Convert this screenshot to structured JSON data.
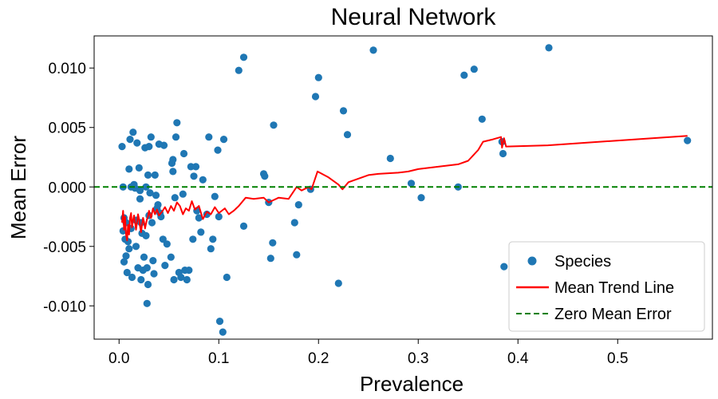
{
  "chart_data": {
    "type": "scatter",
    "title": "Neural Network",
    "xlabel": "Prevalence",
    "ylabel": "Mean Error",
    "xlim": [
      -0.025,
      0.595
    ],
    "ylim": [
      -0.0128,
      0.0127
    ],
    "xticks": [
      0.0,
      0.1,
      0.2,
      0.3,
      0.4,
      0.5
    ],
    "xtick_labels": [
      "0.0",
      "0.1",
      "0.2",
      "0.3",
      "0.4",
      "0.5"
    ],
    "yticks": [
      0.01,
      0.005,
      0.0,
      -0.005,
      -0.01
    ],
    "ytick_labels": [
      "0.010",
      "0.005",
      "0.000",
      "-0.005",
      "-0.010"
    ],
    "grid": false,
    "legend_position": "lower-right",
    "legend": [
      "Species",
      "Mean Trend Line",
      "Zero Mean Error"
    ],
    "colors": {
      "species": "#1f77b4",
      "trend": "#ff0000",
      "zero": "#008000"
    },
    "series": [
      {
        "name": "Species",
        "kind": "scatter",
        "points": [
          [
            0.003,
            0.0034
          ],
          [
            0.004,
            0.0
          ],
          [
            0.005,
            -0.0026
          ],
          [
            0.004,
            -0.0037
          ],
          [
            0.006,
            -0.0044
          ],
          [
            0.005,
            -0.0063
          ],
          [
            0.007,
            -0.003
          ],
          [
            0.007,
            -0.0058
          ],
          [
            0.008,
            -0.0072
          ],
          [
            0.009,
            -0.0046
          ],
          [
            0.01,
            0.0015
          ],
          [
            0.01,
            -0.0052
          ],
          [
            0.011,
            0.004
          ],
          [
            0.012,
            0.0
          ],
          [
            0.012,
            -0.0035
          ],
          [
            0.013,
            -0.0076
          ],
          [
            0.014,
            0.0046
          ],
          [
            0.015,
            0.0002
          ],
          [
            0.016,
            -0.0001
          ],
          [
            0.017,
            -0.0028
          ],
          [
            0.017,
            -0.005
          ],
          [
            0.018,
            0.0037
          ],
          [
            0.019,
            -0.0068
          ],
          [
            0.02,
            0.0016
          ],
          [
            0.021,
            -0.0003
          ],
          [
            0.021,
            -0.001
          ],
          [
            0.022,
            -0.003
          ],
          [
            0.022,
            -0.0078
          ],
          [
            0.023,
            -0.0039
          ],
          [
            0.024,
            -0.007
          ],
          [
            0.025,
            -0.0059
          ],
          [
            0.026,
            0.0033
          ],
          [
            0.027,
            0.0
          ],
          [
            0.027,
            -0.0041
          ],
          [
            0.028,
            -0.0068
          ],
          [
            0.028,
            -0.0098
          ],
          [
            0.029,
            0.001
          ],
          [
            0.029,
            -0.0082
          ],
          [
            0.03,
            0.0034
          ],
          [
            0.03,
            -0.0024
          ],
          [
            0.031,
            -0.0005
          ],
          [
            0.032,
            0.0042
          ],
          [
            0.033,
            -0.003
          ],
          [
            0.034,
            -0.0062
          ],
          [
            0.035,
            -0.0073
          ],
          [
            0.036,
            0.001
          ],
          [
            0.037,
            -0.0007
          ],
          [
            0.038,
            -0.0018
          ],
          [
            0.039,
            -0.0015
          ],
          [
            0.04,
            0.0036
          ],
          [
            0.041,
            -0.0022
          ],
          [
            0.042,
            -0.0025
          ],
          [
            0.044,
            -0.0044
          ],
          [
            0.045,
            0.0035
          ],
          [
            0.046,
            -0.0066
          ],
          [
            0.048,
            -0.0048
          ],
          [
            0.052,
            -0.0059
          ],
          [
            0.053,
            0.002
          ],
          [
            0.054,
            0.0023
          ],
          [
            0.054,
            0.0013
          ],
          [
            0.055,
            -0.0078
          ],
          [
            0.056,
            -0.0009
          ],
          [
            0.057,
            0.0042
          ],
          [
            0.058,
            0.0054
          ],
          [
            0.06,
            -0.0072
          ],
          [
            0.062,
            -0.0076
          ],
          [
            0.064,
            -0.0006
          ],
          [
            0.065,
            0.0028
          ],
          [
            0.066,
            -0.007
          ],
          [
            0.068,
            -0.0078
          ],
          [
            0.07,
            -0.007
          ],
          [
            0.072,
            0.0017
          ],
          [
            0.074,
            -0.0044
          ],
          [
            0.075,
            0.0009
          ],
          [
            0.077,
            0.0017
          ],
          [
            0.078,
            -0.002
          ],
          [
            0.08,
            -0.0026
          ],
          [
            0.082,
            -0.0038
          ],
          [
            0.084,
            0.0006
          ],
          [
            0.088,
            -0.0023
          ],
          [
            0.09,
            0.0042
          ],
          [
            0.092,
            -0.0052
          ],
          [
            0.094,
            -0.0044
          ],
          [
            0.096,
            -0.0008
          ],
          [
            0.099,
            0.0031
          ],
          [
            0.1,
            -0.0025
          ],
          [
            0.101,
            -0.0113
          ],
          [
            0.104,
            -0.0122
          ],
          [
            0.105,
            0.004
          ],
          [
            0.108,
            -0.0076
          ],
          [
            0.12,
            0.0098
          ],
          [
            0.125,
            0.0109
          ],
          [
            0.125,
            -0.0033
          ],
          [
            0.145,
            0.0011
          ],
          [
            0.146,
            0.0009
          ],
          [
            0.15,
            -0.0013
          ],
          [
            0.152,
            -0.006
          ],
          [
            0.154,
            -0.0047
          ],
          [
            0.155,
            0.0052
          ],
          [
            0.176,
            -0.003
          ],
          [
            0.178,
            -0.0057
          ],
          [
            0.18,
            -0.0015
          ],
          [
            0.192,
            -0.0002
          ],
          [
            0.197,
            0.0076
          ],
          [
            0.2,
            0.0092
          ],
          [
            0.22,
            -0.0081
          ],
          [
            0.225,
            0.0064
          ],
          [
            0.229,
            0.0044
          ],
          [
            0.255,
            0.0115
          ],
          [
            0.272,
            0.0024
          ],
          [
            0.293,
            0.0003
          ],
          [
            0.303,
            -0.0009
          ],
          [
            0.34,
            0.0
          ],
          [
            0.346,
            0.0094
          ],
          [
            0.356,
            0.0099
          ],
          [
            0.364,
            0.0057
          ],
          [
            0.384,
            0.0038
          ],
          [
            0.385,
            0.0028
          ],
          [
            0.386,
            -0.0067
          ],
          [
            0.431,
            0.0117
          ],
          [
            0.57,
            0.0039
          ]
        ]
      },
      {
        "name": "Mean Trend Line",
        "kind": "line",
        "points": [
          [
            0.003,
            -0.003
          ],
          [
            0.004,
            -0.002
          ],
          [
            0.005,
            -0.0036
          ],
          [
            0.006,
            -0.0025
          ],
          [
            0.007,
            -0.004
          ],
          [
            0.008,
            -0.0045
          ],
          [
            0.009,
            -0.0032
          ],
          [
            0.01,
            -0.004
          ],
          [
            0.011,
            -0.0026
          ],
          [
            0.012,
            -0.0022
          ],
          [
            0.013,
            -0.0034
          ],
          [
            0.014,
            -0.0028
          ],
          [
            0.015,
            -0.0024
          ],
          [
            0.016,
            -0.003
          ],
          [
            0.017,
            -0.0036
          ],
          [
            0.018,
            -0.003
          ],
          [
            0.019,
            -0.0023
          ],
          [
            0.02,
            -0.0027
          ],
          [
            0.021,
            -0.0033
          ],
          [
            0.022,
            -0.0038
          ],
          [
            0.023,
            -0.0032
          ],
          [
            0.024,
            -0.0026
          ],
          [
            0.025,
            -0.0029
          ],
          [
            0.026,
            -0.0035
          ],
          [
            0.027,
            -0.0031
          ],
          [
            0.028,
            -0.0027
          ],
          [
            0.029,
            -0.0025
          ],
          [
            0.03,
            -0.002
          ],
          [
            0.032,
            -0.0026
          ],
          [
            0.034,
            -0.0018
          ],
          [
            0.036,
            -0.0023
          ],
          [
            0.038,
            -0.0019
          ],
          [
            0.04,
            -0.0024
          ],
          [
            0.043,
            -0.0021
          ],
          [
            0.046,
            -0.0017
          ],
          [
            0.049,
            -0.0022
          ],
          [
            0.052,
            -0.0016
          ],
          [
            0.055,
            -0.002
          ],
          [
            0.058,
            -0.0013
          ],
          [
            0.061,
            -0.0016
          ],
          [
            0.064,
            -0.0023
          ],
          [
            0.067,
            -0.0018
          ],
          [
            0.07,
            -0.002
          ],
          [
            0.073,
            -0.0012
          ],
          [
            0.076,
            -0.0019
          ],
          [
            0.08,
            -0.0016
          ],
          [
            0.084,
            -0.0027
          ],
          [
            0.088,
            -0.0021
          ],
          [
            0.092,
            -0.0023
          ],
          [
            0.096,
            -0.0017
          ],
          [
            0.1,
            -0.0022
          ],
          [
            0.103,
            -0.002
          ],
          [
            0.106,
            -0.0018
          ],
          [
            0.11,
            -0.0023
          ],
          [
            0.115,
            -0.002
          ],
          [
            0.12,
            -0.0016
          ],
          [
            0.127,
            -0.0009
          ],
          [
            0.135,
            -0.001
          ],
          [
            0.145,
            -0.0009
          ],
          [
            0.15,
            -0.0013
          ],
          [
            0.16,
            -0.0009
          ],
          [
            0.17,
            -0.001
          ],
          [
            0.178,
            0.0
          ],
          [
            0.183,
            -0.0003
          ],
          [
            0.19,
            0.0
          ],
          [
            0.193,
            -0.0002
          ],
          [
            0.199,
            0.0013
          ],
          [
            0.21,
            0.0008
          ],
          [
            0.22,
            0.0002
          ],
          [
            0.224,
            -0.0002
          ],
          [
            0.23,
            0.0004
          ],
          [
            0.25,
            0.001
          ],
          [
            0.26,
            0.0011
          ],
          [
            0.28,
            0.0012
          ],
          [
            0.29,
            0.0013
          ],
          [
            0.3,
            0.0015
          ],
          [
            0.32,
            0.0017
          ],
          [
            0.34,
            0.0019
          ],
          [
            0.35,
            0.0022
          ],
          [
            0.36,
            0.0031
          ],
          [
            0.365,
            0.0038
          ],
          [
            0.375,
            0.004
          ],
          [
            0.383,
            0.0042
          ],
          [
            0.384,
            0.0033
          ],
          [
            0.386,
            0.0041
          ],
          [
            0.388,
            0.0034
          ],
          [
            0.43,
            0.0035
          ],
          [
            0.57,
            0.0043
          ]
        ]
      },
      {
        "name": "Zero Mean Error",
        "kind": "hline",
        "y": 0.0
      }
    ]
  }
}
